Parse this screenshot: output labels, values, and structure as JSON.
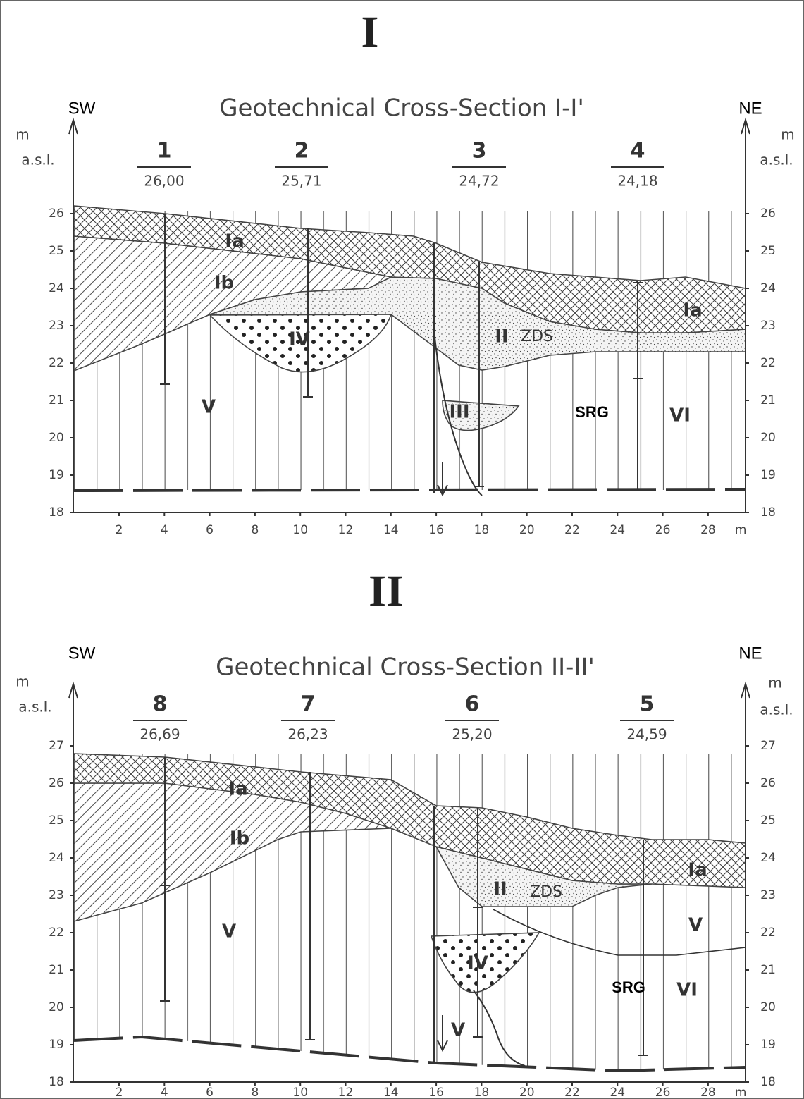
{
  "sections": [
    {
      "numeral": "I",
      "title": "Geotechnical Cross-Section I-I'",
      "left_direction": "SW",
      "right_direction": "NE",
      "left_axis_unit": "m",
      "left_axis_label": "a.s.l.",
      "right_axis_unit": "m",
      "right_axis_label": "a.s.l.",
      "y_ticks": [
        26,
        25,
        24,
        23,
        22,
        21,
        20,
        19,
        18
      ],
      "x_ticks": [
        2,
        4,
        6,
        8,
        10,
        12,
        14,
        16,
        18,
        20,
        22,
        24,
        26,
        28
      ],
      "x_unit": "m",
      "boreholes": [
        {
          "id": "1",
          "elevation": "26,00"
        },
        {
          "id": "2",
          "elevation": "25,71"
        },
        {
          "id": "3",
          "elevation": "24,72"
        },
        {
          "id": "4",
          "elevation": "24,18"
        }
      ],
      "layer_labels": [
        "Ia",
        "Ib",
        "IV",
        "II",
        "ZDS",
        "III",
        "V",
        "SRG",
        "VI",
        "Ia"
      ]
    },
    {
      "numeral": "II",
      "title": "Geotechnical Cross-Section II-II'",
      "left_direction": "SW",
      "right_direction": "NE",
      "left_axis_unit": "m",
      "left_axis_label": "a.s.l.",
      "right_axis_unit": "m",
      "right_axis_label": "a.s.l.",
      "y_ticks": [
        27,
        26,
        25,
        24,
        23,
        22,
        21,
        20,
        19,
        18
      ],
      "x_ticks": [
        2,
        4,
        6,
        8,
        10,
        12,
        14,
        16,
        18,
        20,
        22,
        24,
        26,
        28
      ],
      "x_unit": "m",
      "boreholes": [
        {
          "id": "8",
          "elevation": "26,69"
        },
        {
          "id": "7",
          "elevation": "26,23"
        },
        {
          "id": "6",
          "elevation": "25,20"
        },
        {
          "id": "5",
          "elevation": "24,59"
        }
      ],
      "layer_labels": [
        "Ia",
        "Ib",
        "Ia",
        "II",
        "ZDS",
        "V",
        "V",
        "IV",
        "SRG",
        "VI",
        "V"
      ]
    }
  ]
}
